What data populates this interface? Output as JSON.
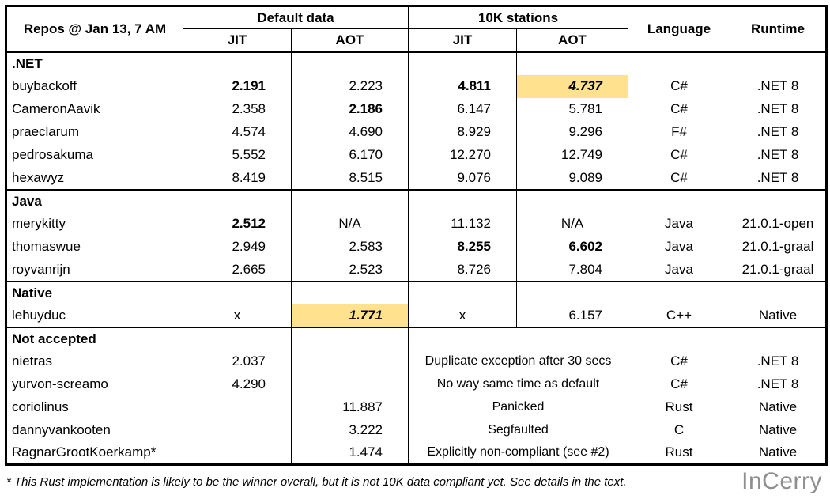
{
  "header": {
    "repos_label": "Repos @ Jan 13, 7 AM",
    "group_default": "Default data",
    "group_10k": "10K stations",
    "subcols": [
      "JIT",
      "AOT",
      "JIT",
      "AOT"
    ],
    "language_label": "Language",
    "runtime_label": "Runtime"
  },
  "sections": [
    {
      "label": ".NET",
      "merged_10k": false,
      "rows": [
        {
          "repo": "buybackoff",
          "cells": [
            {
              "text": "2.191",
              "bold": true
            },
            {
              "text": "2.223"
            },
            {
              "text": "4.811",
              "bold": true
            },
            {
              "text": "4.737",
              "bold": true,
              "italic": true,
              "highlight": true
            }
          ],
          "lang": "C#",
          "runtime": ".NET 8"
        },
        {
          "repo": "CameronAavik",
          "cells": [
            {
              "text": "2.358"
            },
            {
              "text": "2.186",
              "bold": true
            },
            {
              "text": "6.147"
            },
            {
              "text": "5.781"
            }
          ],
          "lang": "C#",
          "runtime": ".NET 8"
        },
        {
          "repo": "praeclarum",
          "cells": [
            {
              "text": "4.574"
            },
            {
              "text": "4.690"
            },
            {
              "text": "8.929"
            },
            {
              "text": "9.296"
            }
          ],
          "lang": "F#",
          "runtime": ".NET 8"
        },
        {
          "repo": "pedrosakuma",
          "cells": [
            {
              "text": "5.552"
            },
            {
              "text": "6.170"
            },
            {
              "text": "12.270"
            },
            {
              "text": "12.749"
            }
          ],
          "lang": "C#",
          "runtime": ".NET 8"
        },
        {
          "repo": "hexawyz",
          "cells": [
            {
              "text": "8.419"
            },
            {
              "text": "8.515"
            },
            {
              "text": "9.076"
            },
            {
              "text": "9.089"
            }
          ],
          "lang": "C#",
          "runtime": ".NET 8"
        }
      ]
    },
    {
      "label": "Java",
      "merged_10k": false,
      "rows": [
        {
          "repo": "merykitty",
          "cells": [
            {
              "text": "2.512",
              "bold": true
            },
            {
              "text": "N/A"
            },
            {
              "text": "11.132"
            },
            {
              "text": "N/A"
            }
          ],
          "lang": "Java",
          "runtime": "21.0.1-open"
        },
        {
          "repo": "thomaswue",
          "cells": [
            {
              "text": "2.949"
            },
            {
              "text": "2.583"
            },
            {
              "text": "8.255",
              "bold": true
            },
            {
              "text": "6.602",
              "bold": true
            }
          ],
          "lang": "Java",
          "runtime": "21.0.1-graal"
        },
        {
          "repo": "royvanrijn",
          "cells": [
            {
              "text": "2.665"
            },
            {
              "text": "2.523"
            },
            {
              "text": "8.726"
            },
            {
              "text": "7.804"
            }
          ],
          "lang": "Java",
          "runtime": "21.0.1-graal"
        }
      ]
    },
    {
      "label": "Native",
      "merged_10k": false,
      "rows": [
        {
          "repo": "lehuyduc",
          "cells": [
            {
              "text": "x"
            },
            {
              "text": "1.771",
              "bold": true,
              "italic": true,
              "highlight": true
            },
            {
              "text": "x"
            },
            {
              "text": "6.157"
            }
          ],
          "lang": "C++",
          "runtime": "Native"
        }
      ]
    },
    {
      "label": "Not accepted",
      "merged_10k": true,
      "rows": [
        {
          "repo": "nietras",
          "cells": [
            {
              "text": "2.037"
            },
            {
              "text": ""
            }
          ],
          "note": "Duplicate exception after 30 secs",
          "lang": "C#",
          "runtime": ".NET 8"
        },
        {
          "repo": "yurvon-screamo",
          "cells": [
            {
              "text": "4.290"
            },
            {
              "text": ""
            }
          ],
          "note": "No way same time as default",
          "lang": "C#",
          "runtime": ".NET 8"
        },
        {
          "repo": "coriolinus",
          "cells": [
            {
              "text": ""
            },
            {
              "text": "11.887"
            }
          ],
          "note": "Panicked",
          "lang": "Rust",
          "runtime": "Native"
        },
        {
          "repo": "dannyvankooten",
          "cells": [
            {
              "text": ""
            },
            {
              "text": "3.222"
            }
          ],
          "note": "Segfaulted",
          "lang": "C",
          "runtime": "Native"
        },
        {
          "repo": "RagnarGrootKoerkamp*",
          "cells": [
            {
              "text": ""
            },
            {
              "text": "1.474"
            }
          ],
          "note": "Explicitly non-compliant (see #2)",
          "lang": "Rust",
          "runtime": "Native"
        }
      ]
    }
  ],
  "footnote": "* This Rust implementation is likely to be the winner overall, but it is not 10K data compliant yet. See details in the text.",
  "watermark": "InCerry",
  "colors": {
    "highlight": "#FFE18E",
    "watermark": "#8F8F8F",
    "border": "#000000"
  },
  "chart_data": {
    "type": "table",
    "columns": [
      "Repo",
      "Default data JIT",
      "Default data AOT",
      "10K stations JIT",
      "10K stations AOT",
      "Language",
      "Runtime"
    ],
    "rows": [
      [
        ".NET",
        "",
        "",
        "",
        "",
        "",
        ""
      ],
      [
        "buybackoff",
        "2.191",
        "2.223",
        "4.811",
        "4.737",
        "C#",
        ".NET 8"
      ],
      [
        "CameronAavik",
        "2.358",
        "2.186",
        "6.147",
        "5.781",
        "C#",
        ".NET 8"
      ],
      [
        "praeclarum",
        "4.574",
        "4.690",
        "8.929",
        "9.296",
        "F#",
        ".NET 8"
      ],
      [
        "pedrosakuma",
        "5.552",
        "6.170",
        "12.270",
        "12.749",
        "C#",
        ".NET 8"
      ],
      [
        "hexawyz",
        "8.419",
        "8.515",
        "9.076",
        "9.089",
        "C#",
        ".NET 8"
      ],
      [
        "Java",
        "",
        "",
        "",
        "",
        "",
        ""
      ],
      [
        "merykitty",
        "2.512",
        "N/A",
        "11.132",
        "N/A",
        "Java",
        "21.0.1-open"
      ],
      [
        "thomaswue",
        "2.949",
        "2.583",
        "8.255",
        "6.602",
        "Java",
        "21.0.1-graal"
      ],
      [
        "royvanrijn",
        "2.665",
        "2.523",
        "8.726",
        "7.804",
        "Java",
        "21.0.1-graal"
      ],
      [
        "Native",
        "",
        "",
        "",
        "",
        "",
        ""
      ],
      [
        "lehuyduc",
        "x",
        "1.771",
        "x",
        "6.157",
        "C++",
        "Native"
      ],
      [
        "Not accepted",
        "",
        "",
        "",
        "",
        "",
        ""
      ],
      [
        "nietras",
        "2.037",
        "",
        "Duplicate exception after 30 secs",
        "",
        "C#",
        ".NET 8"
      ],
      [
        "yurvon-screamo",
        "4.290",
        "",
        "No way same time as default",
        "",
        "C#",
        ".NET 8"
      ],
      [
        "coriolinus",
        "",
        "11.887",
        "Panicked",
        "",
        "Rust",
        "Native"
      ],
      [
        "dannyvankooten",
        "",
        "3.222",
        "Segfaulted",
        "",
        "C",
        "Native"
      ],
      [
        "RagnarGrootKoerkamp*",
        "",
        "1.474",
        "Explicitly non-compliant (see #2)",
        "",
        "Rust",
        "Native"
      ]
    ]
  }
}
